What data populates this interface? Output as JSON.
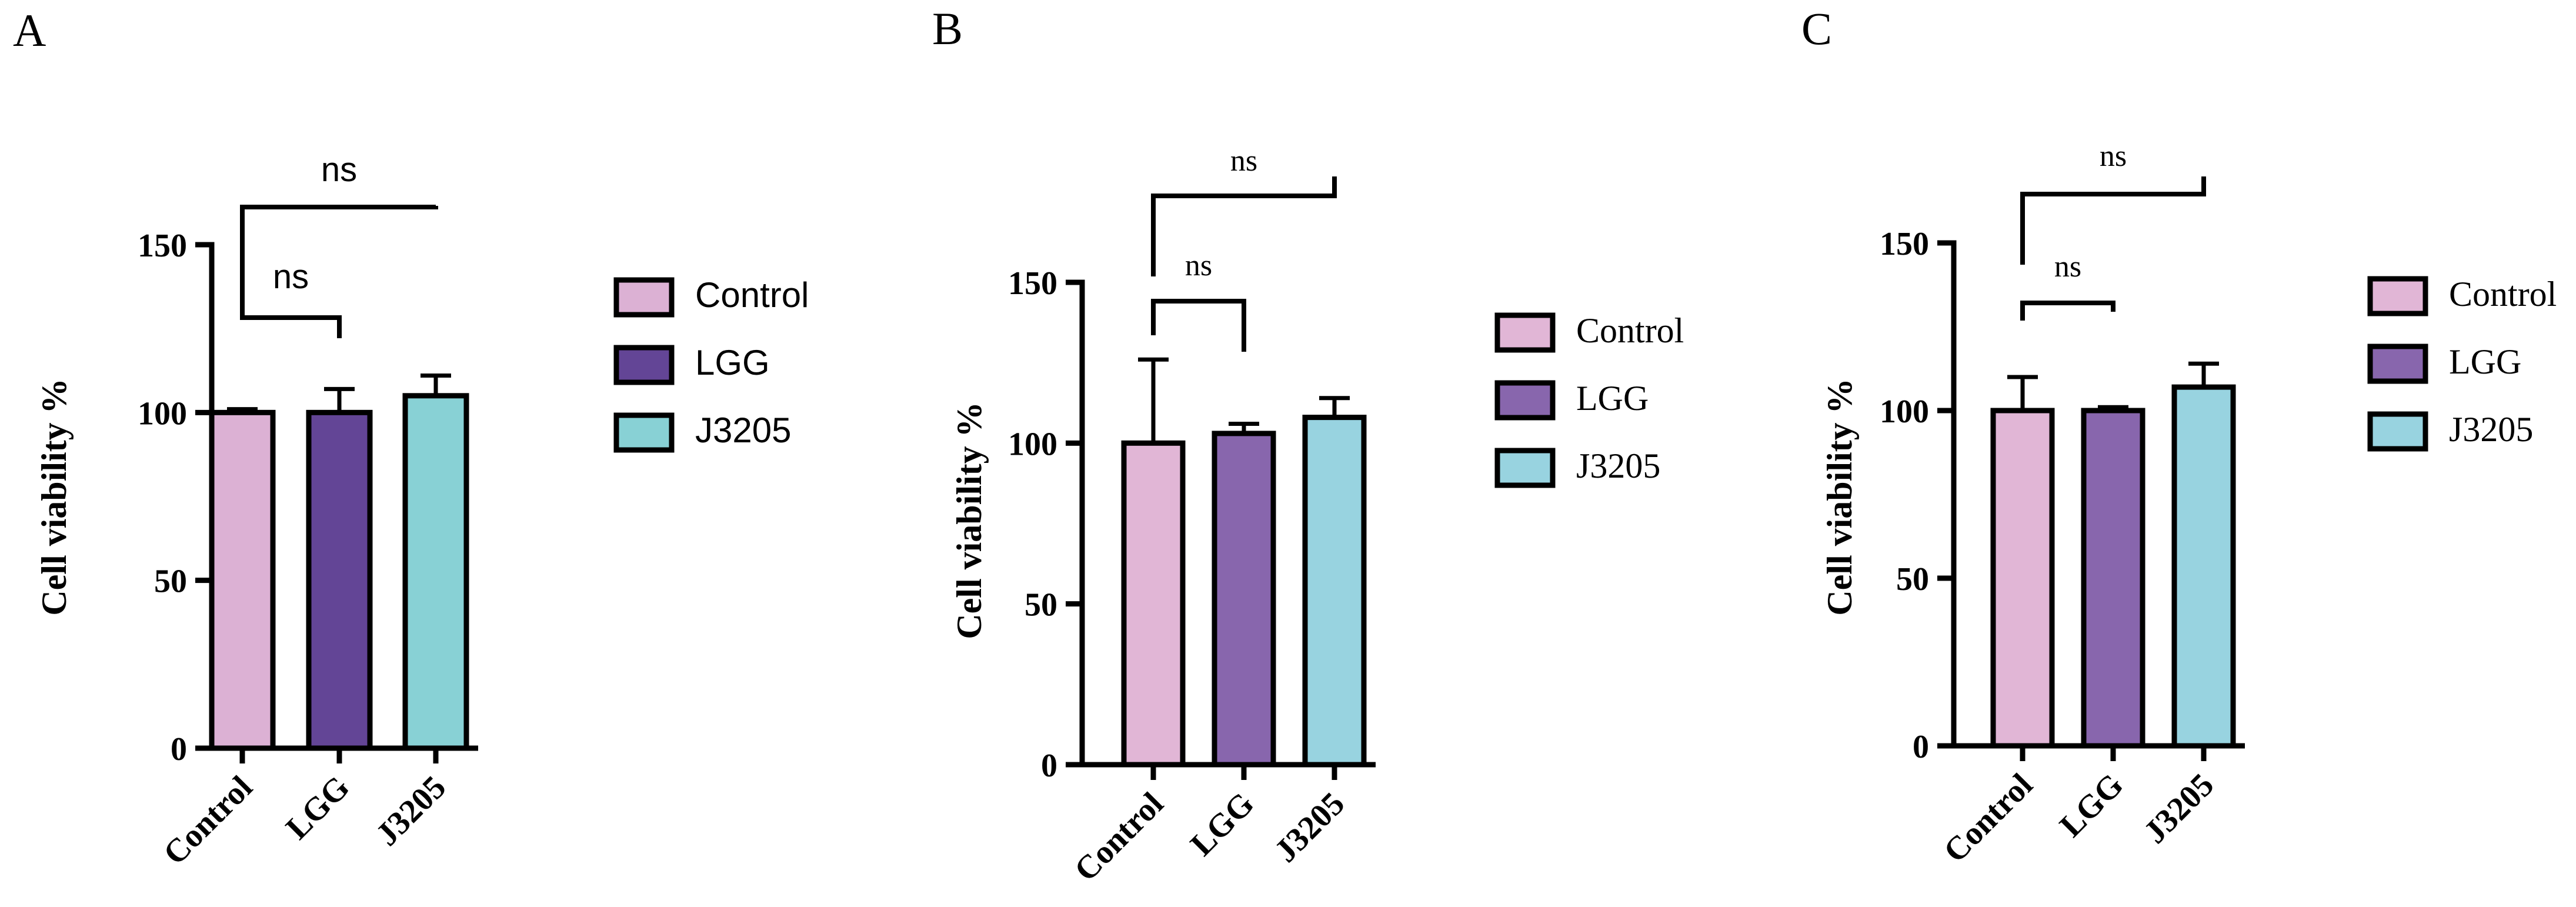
{
  "chart_data": [
    {
      "panel_label": "A",
      "type": "bar",
      "categories": [
        "Control",
        "LGG",
        "J3205"
      ],
      "values": [
        100,
        100,
        105
      ],
      "errors": [
        1,
        7,
        6
      ],
      "colors": [
        "#dcb1d4",
        "#634596",
        "#88d1d5"
      ],
      "ylabel": "Cell viability %",
      "ylim": [
        0,
        150
      ],
      "yticks": [
        "0",
        "50",
        "100",
        "150"
      ],
      "legend": [
        "Control",
        "LGG",
        "J3205"
      ],
      "significance": [
        {
          "from": 0,
          "to": 1,
          "label": "ns"
        },
        {
          "from": 0,
          "to": 2,
          "label": "ns"
        }
      ]
    },
    {
      "panel_label": "B",
      "type": "bar",
      "categories": [
        "Control",
        "LGG",
        "J3205"
      ],
      "values": [
        100,
        103,
        108
      ],
      "errors": [
        26,
        3,
        6
      ],
      "colors": [
        "#e1b6d6",
        "#8866ad",
        "#98d3e0"
      ],
      "ylabel": "Cell viability %",
      "ylim": [
        0,
        150
      ],
      "yticks": [
        "0",
        "50",
        "100",
        "150"
      ],
      "legend": [
        "Control",
        "LGG",
        "J3205"
      ],
      "significance": [
        {
          "from": 0,
          "to": 1,
          "label": "ns"
        },
        {
          "from": 0,
          "to": 2,
          "label": "ns"
        }
      ]
    },
    {
      "panel_label": "C",
      "type": "bar",
      "categories": [
        "Control",
        "LGG",
        "J3205"
      ],
      "values": [
        100,
        100,
        107
      ],
      "errors": [
        10,
        1,
        7
      ],
      "colors": [
        "#e1b6d6",
        "#8866ad",
        "#98d3e0"
      ],
      "ylabel": "Cell viability %",
      "ylim": [
        0,
        150
      ],
      "yticks": [
        "0",
        "50",
        "100",
        "150"
      ],
      "legend": [
        "Control",
        "LGG",
        "J3205"
      ],
      "significance": [
        {
          "from": 0,
          "to": 1,
          "label": "ns"
        },
        {
          "from": 0,
          "to": 2,
          "label": "ns"
        }
      ]
    }
  ]
}
